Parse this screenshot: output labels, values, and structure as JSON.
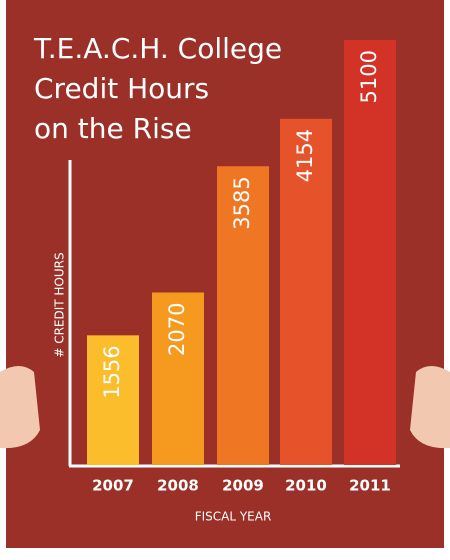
{
  "chart_data": {
    "type": "bar",
    "title": [
      "T.E.A.C.H. College",
      "Credit Hours",
      "on the Rise"
    ],
    "x_label": "FISCAL YEAR",
    "y_label": "# CREDIT HOURS",
    "categories": [
      "2007",
      "2008",
      "2009",
      "2010",
      "2011"
    ],
    "values": [
      1556,
      2070,
      3585,
      4154,
      5100
    ],
    "colors": [
      "#fbbd2c",
      "#f59a1f",
      "#ef7622",
      "#e6522a",
      "#d33226"
    ],
    "ylim": [
      0,
      5580
    ]
  }
}
